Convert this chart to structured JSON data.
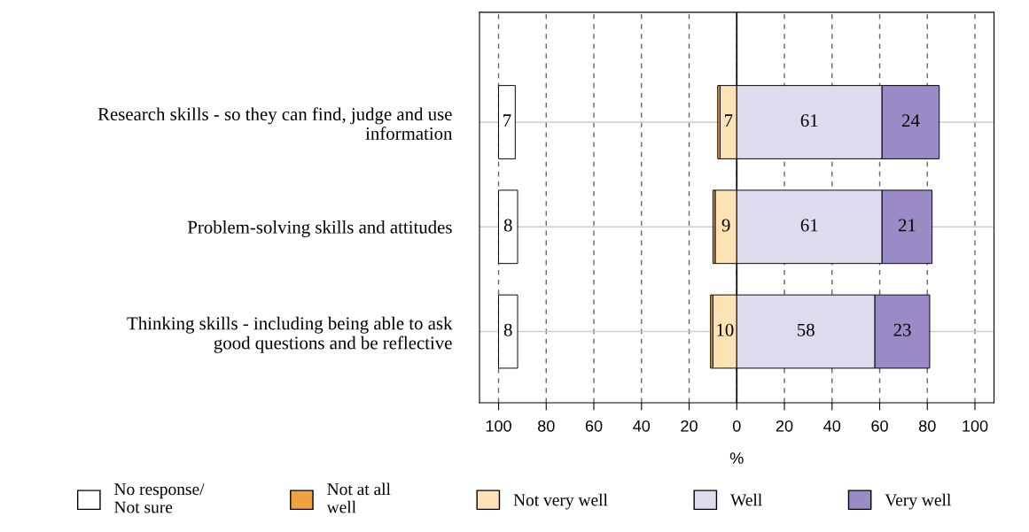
{
  "chart_data": {
    "type": "bar",
    "orientation": "horizontal",
    "categories": [
      "Research skills - so they can find, judge and use\ninformation",
      "Problem-solving skills and attitudes",
      "Thinking skills - including being able to ask\ngood questions and be reflective"
    ],
    "series": [
      {
        "name": "No response/\nNot sure",
        "color": "#ffffff",
        "base": [
          -100,
          -100,
          -100
        ],
        "values": [
          7,
          8,
          8
        ],
        "value_labels": [
          "7",
          "8",
          "8"
        ]
      },
      {
        "name": "Not at all\nwell",
        "color": "#f0a23c",
        "base": [
          -8,
          -10,
          -11
        ],
        "values": [
          1,
          1,
          1
        ],
        "value_labels": [
          null,
          null,
          null
        ]
      },
      {
        "name": "Not very well",
        "color": "#fde3b3",
        "base": [
          -7,
          -9,
          -10
        ],
        "values": [
          7,
          9,
          10
        ],
        "value_labels": [
          "7",
          "9",
          "10"
        ]
      },
      {
        "name": "Well",
        "color": "#dcdcee",
        "base": [
          0,
          0,
          0
        ],
        "values": [
          61,
          61,
          58
        ],
        "value_labels": [
          "61",
          "61",
          "58"
        ]
      },
      {
        "name": "Very well",
        "color": "#9a8ac6",
        "base": [
          61,
          61,
          58
        ],
        "values": [
          24,
          21,
          23
        ],
        "value_labels": [
          "24",
          "21",
          "23"
        ]
      }
    ],
    "xlabel": "%",
    "xlim": [
      -108,
      108
    ],
    "xticks": [
      {
        "value": -100,
        "label": "100"
      },
      {
        "value": -80,
        "label": "80"
      },
      {
        "value": -60,
        "label": "60"
      },
      {
        "value": -40,
        "label": "40"
      },
      {
        "value": -20,
        "label": "20"
      },
      0,
      20,
      40,
      60,
      80,
      100
    ],
    "ref_lines": [
      {
        "axis": "x",
        "value": 0,
        "label": null,
        "color": "#000000",
        "line_style": "solid"
      }
    ],
    "grid": true,
    "legend": "bottom"
  }
}
